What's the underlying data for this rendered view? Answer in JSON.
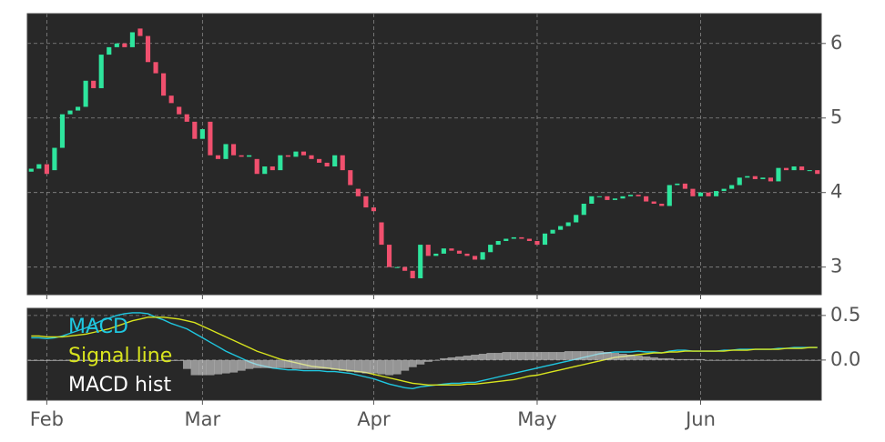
{
  "chart_data": [
    {
      "type": "candlestick",
      "categories": [
        null,
        null,
        "Feb",
        null,
        null,
        null,
        null,
        null,
        null,
        null,
        null,
        null,
        null,
        null,
        null,
        null,
        null,
        null,
        null,
        null,
        null,
        null,
        "Mar",
        null,
        null,
        null,
        null,
        null,
        null,
        null,
        null,
        null,
        null,
        null,
        null,
        null,
        null,
        null,
        null,
        null,
        null,
        null,
        null,
        null,
        "Apr",
        null,
        null,
        null,
        null,
        null,
        null,
        null,
        null,
        null,
        null,
        null,
        null,
        null,
        null,
        null,
        null,
        null,
        null,
        null,
        null,
        "May",
        null,
        null,
        null,
        null,
        null,
        null,
        null,
        null,
        null,
        null,
        null,
        null,
        null,
        null,
        null,
        null,
        null,
        null,
        null,
        null,
        "Jun",
        null,
        null,
        null,
        null,
        null,
        null,
        null,
        null,
        null,
        null,
        null,
        null,
        null,
        null,
        null
      ],
      "open": [
        4.28,
        4.32,
        4.38,
        4.3,
        4.6,
        5.05,
        5.1,
        5.15,
        5.5,
        5.4,
        5.85,
        5.95,
        6.0,
        5.95,
        6.2,
        6.1,
        5.75,
        5.6,
        5.3,
        5.15,
        5.05,
        4.95,
        4.72,
        4.95,
        4.5,
        4.45,
        4.65,
        4.5,
        4.48,
        4.45,
        4.25,
        4.35,
        4.3,
        4.5,
        4.48,
        4.55,
        4.5,
        4.45,
        4.4,
        4.35,
        4.5,
        4.3,
        4.05,
        3.95,
        3.8,
        3.6,
        3.3,
        3.0,
        3.0,
        2.95,
        2.85,
        3.3,
        3.15,
        3.18,
        3.25,
        3.22,
        3.18,
        3.15,
        3.1,
        3.2,
        3.3,
        3.35,
        3.38,
        3.4,
        3.38,
        3.35,
        3.3,
        3.45,
        3.5,
        3.55,
        3.6,
        3.7,
        3.85,
        3.95,
        3.95,
        3.9,
        3.92,
        3.95,
        3.97,
        3.95,
        3.88,
        3.85,
        3.82,
        4.1,
        4.12,
        4.05,
        3.95,
        4.0,
        3.95,
        4.02,
        4.05,
        4.1,
        4.2,
        4.22,
        4.18,
        4.2,
        4.15,
        4.33,
        4.3,
        4.35,
        4.3,
        4.3
      ],
      "close": [
        4.32,
        4.38,
        4.25,
        4.6,
        5.05,
        5.1,
        5.15,
        5.5,
        5.4,
        5.85,
        5.95,
        6.0,
        5.95,
        6.15,
        6.1,
        5.75,
        5.6,
        5.3,
        5.2,
        5.05,
        4.95,
        4.72,
        4.85,
        4.5,
        4.45,
        4.65,
        4.5,
        4.48,
        4.5,
        4.25,
        4.35,
        4.3,
        4.5,
        4.48,
        4.55,
        4.5,
        4.45,
        4.4,
        4.35,
        4.5,
        4.3,
        4.1,
        3.95,
        3.8,
        3.75,
        3.3,
        3.0,
        3.0,
        2.95,
        2.85,
        3.3,
        3.15,
        3.18,
        3.25,
        3.22,
        3.18,
        3.15,
        3.1,
        3.2,
        3.3,
        3.35,
        3.38,
        3.4,
        3.38,
        3.35,
        3.3,
        3.45,
        3.5,
        3.55,
        3.6,
        3.7,
        3.85,
        3.95,
        3.95,
        3.9,
        3.92,
        3.95,
        3.97,
        3.95,
        3.88,
        3.85,
        3.82,
        4.1,
        4.12,
        4.05,
        3.95,
        4.0,
        3.95,
        4.02,
        4.05,
        4.1,
        4.2,
        4.22,
        4.18,
        4.2,
        4.15,
        4.33,
        4.3,
        4.35,
        4.3,
        4.3,
        4.25
      ],
      "up_color": "#2ee59d",
      "down_color": "#f0506e",
      "ylim": [
        2.63,
        6.4
      ],
      "yticks": [
        3,
        4,
        5,
        6
      ],
      "grid": true
    },
    {
      "type": "line",
      "categories": [
        null,
        null,
        "Feb",
        null,
        null,
        null,
        null,
        null,
        null,
        null,
        null,
        null,
        null,
        null,
        null,
        null,
        null,
        null,
        null,
        null,
        null,
        null,
        "Mar",
        null,
        null,
        null,
        null,
        null,
        null,
        null,
        null,
        null,
        null,
        null,
        null,
        null,
        null,
        null,
        null,
        null,
        null,
        null,
        null,
        null,
        "Apr",
        null,
        null,
        null,
        null,
        null,
        null,
        null,
        null,
        null,
        null,
        null,
        null,
        null,
        null,
        null,
        null,
        null,
        null,
        null,
        null,
        "May",
        null,
        null,
        null,
        null,
        null,
        null,
        null,
        null,
        null,
        null,
        null,
        null,
        null,
        null,
        null,
        null,
        null,
        null,
        null,
        null,
        "Jun",
        null,
        null,
        null,
        null,
        null,
        null,
        null,
        null,
        null,
        null,
        null,
        null,
        null,
        null,
        null
      ],
      "series": [
        {
          "name": "MACD",
          "color": "#1fc7e0",
          "values": [
            0.25,
            0.25,
            0.24,
            0.25,
            0.27,
            0.3,
            0.33,
            0.36,
            0.4,
            0.44,
            0.47,
            0.5,
            0.52,
            0.53,
            0.53,
            0.52,
            0.48,
            0.45,
            0.41,
            0.38,
            0.35,
            0.3,
            0.25,
            0.2,
            0.15,
            0.1,
            0.06,
            0.02,
            -0.02,
            -0.05,
            -0.07,
            -0.09,
            -0.1,
            -0.11,
            -0.11,
            -0.12,
            -0.12,
            -0.12,
            -0.13,
            -0.13,
            -0.14,
            -0.15,
            -0.17,
            -0.19,
            -0.21,
            -0.24,
            -0.27,
            -0.29,
            -0.31,
            -0.32,
            -0.3,
            -0.29,
            -0.28,
            -0.27,
            -0.26,
            -0.26,
            -0.25,
            -0.25,
            -0.23,
            -0.21,
            -0.19,
            -0.17,
            -0.15,
            -0.13,
            -0.11,
            -0.09,
            -0.07,
            -0.05,
            -0.03,
            -0.01,
            0.01,
            0.03,
            0.05,
            0.07,
            0.08,
            0.09,
            0.09,
            0.09,
            0.1,
            0.09,
            0.09,
            0.08,
            0.1,
            0.11,
            0.11,
            0.1,
            0.1,
            0.1,
            0.1,
            0.11,
            0.11,
            0.12,
            0.12,
            0.12,
            0.12,
            0.12,
            0.13,
            0.13,
            0.14,
            0.14,
            0.14,
            0.14
          ]
        },
        {
          "name": "Signal line",
          "color": "#d8e41e",
          "values": [
            0.27,
            0.27,
            0.26,
            0.26,
            0.26,
            0.27,
            0.28,
            0.29,
            0.31,
            0.33,
            0.35,
            0.38,
            0.41,
            0.44,
            0.46,
            0.48,
            0.48,
            0.48,
            0.47,
            0.46,
            0.44,
            0.42,
            0.38,
            0.34,
            0.3,
            0.26,
            0.22,
            0.18,
            0.14,
            0.1,
            0.07,
            0.04,
            0.01,
            -0.01,
            -0.03,
            -0.05,
            -0.07,
            -0.08,
            -0.09,
            -0.1,
            -0.11,
            -0.12,
            -0.13,
            -0.14,
            -0.16,
            -0.18,
            -0.2,
            -0.22,
            -0.24,
            -0.26,
            -0.27,
            -0.28,
            -0.28,
            -0.28,
            -0.28,
            -0.28,
            -0.27,
            -0.27,
            -0.26,
            -0.25,
            -0.24,
            -0.23,
            -0.22,
            -0.2,
            -0.18,
            -0.17,
            -0.15,
            -0.13,
            -0.11,
            -0.09,
            -0.07,
            -0.05,
            -0.03,
            -0.01,
            0.01,
            0.03,
            0.04,
            0.05,
            0.06,
            0.07,
            0.08,
            0.08,
            0.09,
            0.09,
            0.1,
            0.1,
            0.1,
            0.1,
            0.1,
            0.1,
            0.11,
            0.11,
            0.11,
            0.12,
            0.12,
            0.12,
            0.12,
            0.13,
            0.13,
            0.13,
            0.14,
            0.14
          ]
        },
        {
          "name": "MACD hist",
          "color": "#dddddd",
          "type": "bar",
          "values": [
            -0.01,
            -0.01,
            -0.01,
            -0.01,
            -0.01,
            -0.01,
            -0.01,
            -0.01,
            -0.01,
            -0.01,
            -0.01,
            -0.01,
            -0.01,
            -0.01,
            -0.01,
            -0.01,
            -0.01,
            -0.01,
            -0.01,
            -0.01,
            -0.1,
            -0.17,
            -0.17,
            -0.17,
            -0.16,
            -0.15,
            -0.14,
            -0.12,
            -0.1,
            -0.09,
            -0.09,
            -0.09,
            -0.09,
            -0.09,
            -0.1,
            -0.1,
            -0.1,
            -0.1,
            -0.1,
            -0.11,
            -0.12,
            -0.13,
            -0.14,
            -0.15,
            -0.15,
            -0.16,
            -0.17,
            -0.16,
            -0.12,
            -0.08,
            -0.05,
            -0.02,
            0,
            0.02,
            0.03,
            0.04,
            0.05,
            0.06,
            0.07,
            0.08,
            0.08,
            0.09,
            0.09,
            0.09,
            0.09,
            0.09,
            0.09,
            0.09,
            0.09,
            0.1,
            0.1,
            0.1,
            0.1,
            0.1,
            0.09,
            0.08,
            0.07,
            0.06,
            0.05,
            0.04,
            0.03,
            0.02,
            0.02,
            0.01,
            0.01,
            0.01,
            0.01,
            0,
            0,
            0,
            0,
            0,
            0,
            0,
            0,
            0,
            0,
            0,
            0,
            0,
            0,
            0
          ]
        }
      ],
      "legend": "upper left",
      "ylim": [
        -0.45,
        0.58
      ],
      "yticks": [
        0.5,
        {
          "value": 0,
          "label": "0.0"
        }
      ],
      "grid": true
    }
  ]
}
